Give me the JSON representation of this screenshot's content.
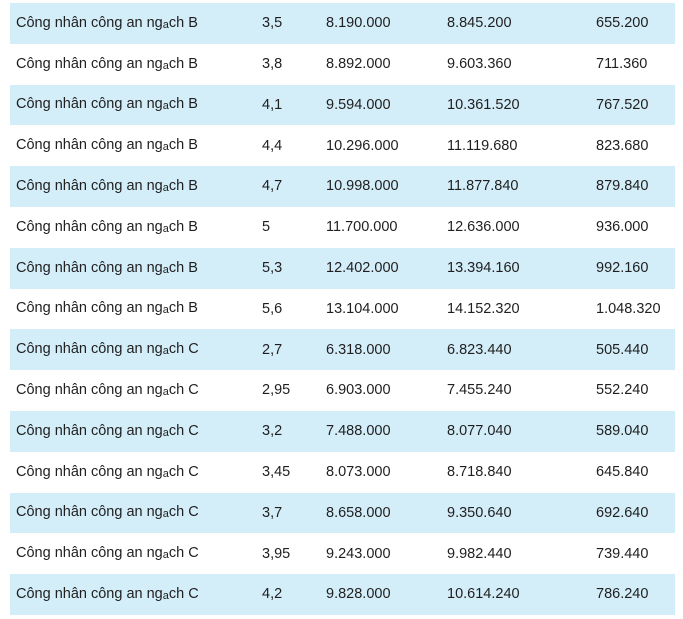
{
  "table": {
    "rows": [
      {
        "name_pre": "Công nhân công an ng",
        "name_sub": "a",
        "name_post": "ch B",
        "coef": "3,5",
        "base": "8.190.000",
        "new": "8.845.200",
        "diff": "655.200"
      },
      {
        "name_pre": "Công nhân công an ng",
        "name_sub": "a",
        "name_post": "ch B",
        "coef": "3,8",
        "base": "8.892.000",
        "new": "9.603.360",
        "diff": "711.360"
      },
      {
        "name_pre": "Công nhân công an ng",
        "name_sub": "a",
        "name_post": "ch B",
        "coef": "4,1",
        "base": "9.594.000",
        "new": "10.361.520",
        "diff": "767.520"
      },
      {
        "name_pre": "Công nhân công an ng",
        "name_sub": "a",
        "name_post": "ch B",
        "coef": "4,4",
        "base": "10.296.000",
        "new": "11.119.680",
        "diff": "823.680"
      },
      {
        "name_pre": "Công nhân công an ng",
        "name_sub": "a",
        "name_post": "ch B",
        "coef": "4,7",
        "base": "10.998.000",
        "new": "11.877.840",
        "diff": "879.840"
      },
      {
        "name_pre": "Công nhân công an ng",
        "name_sub": "a",
        "name_post": "ch B",
        "coef": "5",
        "base": "11.700.000",
        "new": "12.636.000",
        "diff": "936.000"
      },
      {
        "name_pre": "Công nhân công an ng",
        "name_sub": "a",
        "name_post": "ch B",
        "coef": "5,3",
        "base": "12.402.000",
        "new": "13.394.160",
        "diff": "992.160"
      },
      {
        "name_pre": "Công nhân công an ng",
        "name_sub": "a",
        "name_post": "ch B",
        "coef": "5,6",
        "base": "13.104.000",
        "new": "14.152.320",
        "diff": "1.048.320"
      },
      {
        "name_pre": "Công nhân công an ng",
        "name_sub": "a",
        "name_post": "ch C",
        "coef": "2,7",
        "base": "6.318.000",
        "new": "6.823.440",
        "diff": "505.440"
      },
      {
        "name_pre": "Công nhân công an ng",
        "name_sub": "a",
        "name_post": "ch C",
        "coef": "2,95",
        "base": "6.903.000",
        "new": "7.455.240",
        "diff": "552.240"
      },
      {
        "name_pre": "Công nhân công an ng",
        "name_sub": "a",
        "name_post": "ch C",
        "coef": "3,2",
        "base": "7.488.000",
        "new": "8.077.040",
        "diff": "589.040"
      },
      {
        "name_pre": "Công nhân công an ng",
        "name_sub": "a",
        "name_post": "ch C",
        "coef": "3,45",
        "base": "8.073.000",
        "new": "8.718.840",
        "diff": "645.840"
      },
      {
        "name_pre": "Công nhân công an ng",
        "name_sub": "a",
        "name_post": "ch C",
        "coef": "3,7",
        "base": "8.658.000",
        "new": "9.350.640",
        "diff": "692.640"
      },
      {
        "name_pre": "Công nhân công an ng",
        "name_sub": "a",
        "name_post": "ch C",
        "coef": "3,95",
        "base": "9.243.000",
        "new": "9.982.440",
        "diff": "739.440"
      },
      {
        "name_pre": "Công nhân công an ng",
        "name_sub": "a",
        "name_post": "ch C",
        "coef": "4,2",
        "base": "9.828.000",
        "new": "10.614.240",
        "diff": "786.240"
      }
    ]
  },
  "colors": {
    "stripe": "#d3edf9",
    "background": "#ffffff",
    "text": "#1f1f1f"
  }
}
